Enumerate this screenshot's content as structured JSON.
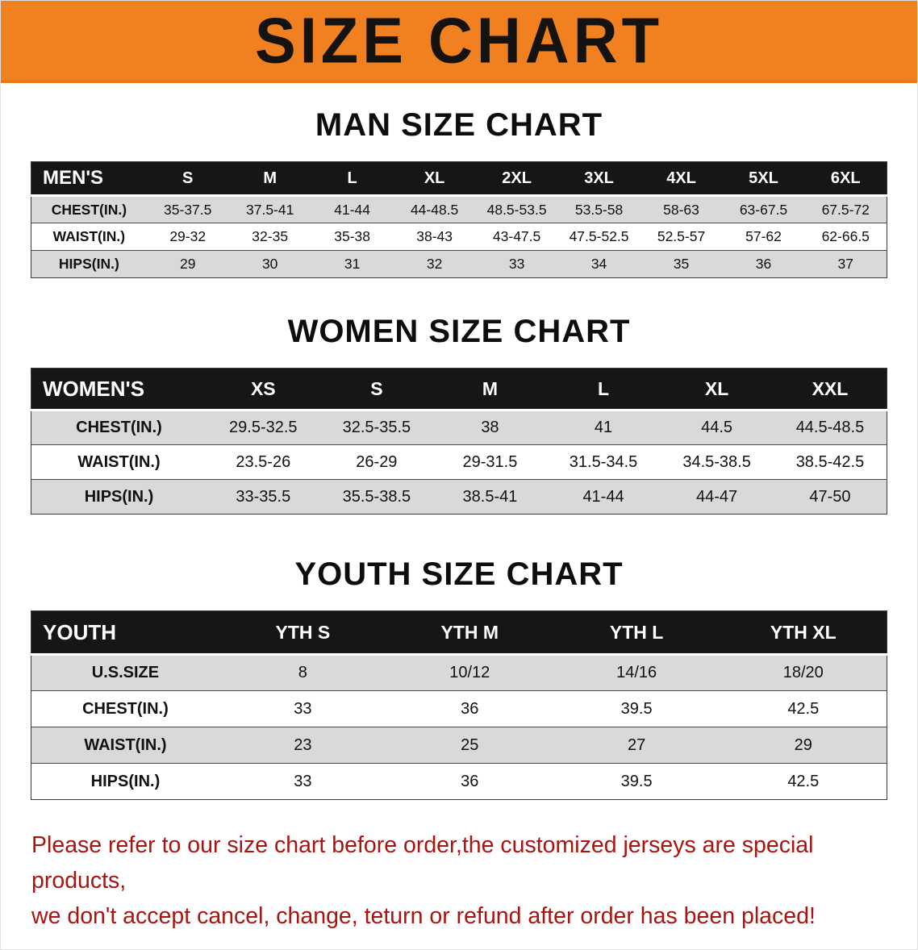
{
  "banner": {
    "title": "SIZE CHART",
    "background_color": "#f08020"
  },
  "sections": [
    {
      "id": "men",
      "heading": "MAN SIZE CHART",
      "table": {
        "header": [
          "MEN'S",
          "S",
          "M",
          "L",
          "XL",
          "2XL",
          "3XL",
          "4XL",
          "5XL",
          "6XL"
        ],
        "rows": [
          [
            "CHEST(IN.)",
            "35-37.5",
            "37.5-41",
            "41-44",
            "44-48.5",
            "48.5-53.5",
            "53.5-58",
            "58-63",
            "63-67.5",
            "67.5-72"
          ],
          [
            "WAIST(IN.)",
            "29-32",
            "32-35",
            "35-38",
            "38-43",
            "43-47.5",
            "47.5-52.5",
            "52.5-57",
            "57-62",
            "62-66.5"
          ],
          [
            "HIPS(IN.)",
            "29",
            "30",
            "31",
            "32",
            "33",
            "34",
            "35",
            "36",
            "37"
          ]
        ]
      }
    },
    {
      "id": "women",
      "heading": "WOMEN SIZE CHART",
      "table": {
        "header": [
          "WOMEN'S",
          "XS",
          "S",
          "M",
          "L",
          "XL",
          "XXL"
        ],
        "rows": [
          [
            "CHEST(IN.)",
            "29.5-32.5",
            "32.5-35.5",
            "38",
            "41",
            "44.5",
            "44.5-48.5"
          ],
          [
            "WAIST(IN.)",
            "23.5-26",
            "26-29",
            "29-31.5",
            "31.5-34.5",
            "34.5-38.5",
            "38.5-42.5"
          ],
          [
            "HIPS(IN.)",
            "33-35.5",
            "35.5-38.5",
            "38.5-41",
            "41-44",
            "44-47",
            "47-50"
          ]
        ]
      }
    },
    {
      "id": "youth",
      "heading": "YOUTH SIZE CHART",
      "table": {
        "header": [
          "YOUTH",
          "YTH S",
          "YTH M",
          "YTH L",
          "YTH XL"
        ],
        "rows": [
          [
            "U.S.SIZE",
            "8",
            "10/12",
            "14/16",
            "18/20"
          ],
          [
            "CHEST(IN.)",
            "33",
            "36",
            "39.5",
            "42.5"
          ],
          [
            "WAIST(IN.)",
            "23",
            "25",
            "27",
            "29"
          ],
          [
            "HIPS(IN.)",
            "33",
            "36",
            "39.5",
            "42.5"
          ]
        ]
      }
    }
  ],
  "disclaimer": {
    "line1": "Please refer to our size chart before order,the customized jerseys are special products,",
    "line2": "we don't accept cancel, change, teturn or refund after order has been placed!"
  },
  "colors": {
    "banner_orange": "#f08020",
    "header_black": "#161616",
    "stripe_gray": "#d9d9d9",
    "disclaimer_red": "#a81410"
  }
}
